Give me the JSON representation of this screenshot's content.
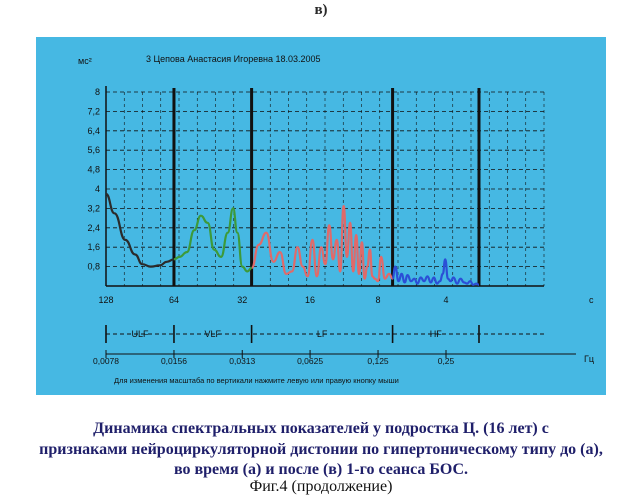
{
  "panel_label": "в)",
  "caption": {
    "line1": "Динамика спектральных показателей у подростка Ц. (16 лет) с",
    "line2": "признаками нейроциркуляторной дистонии по гипертоническому типу до (а),",
    "line3": "во время (а) и после (в) 1-го сеанса БОС."
  },
  "figure_label": "Фиг.4 (продолжение)",
  "colors": {
    "panel": "#46b8e3",
    "ulf": "#2b2b2b",
    "vlf": "#3d9a3a",
    "lf": "#e06a6a",
    "hf": "#2b4fd6"
  },
  "chart_data": {
    "type": "line",
    "title": "3 Цепова Анастасия Игоревна 18.03.2005",
    "ylabel": "мс²",
    "ylim": [
      0,
      8
    ],
    "yticks": [
      "0,8",
      "1,6",
      "2,4",
      "3,2",
      "4",
      "4,8",
      "5,6",
      "6,4",
      "7,2",
      "8"
    ],
    "period_ticks": [
      "128",
      "64",
      "32",
      "16",
      "8",
      "4"
    ],
    "period_unit": "с",
    "freq_ticks": [
      "0,0078",
      "0,0156",
      "0,0313",
      "0,0625",
      "0,125",
      "0,25"
    ],
    "freq_unit": "Гц",
    "bands": [
      "ULF",
      "VLF",
      "LF",
      "HF"
    ],
    "note": "Для изменения масштаба по вертикали нажмите левую или правую кнопку мыши",
    "grid": true,
    "series": [
      {
        "name": "ULF",
        "x": [
          0.0078,
          0.0085,
          0.0095,
          0.0105,
          0.0113,
          0.0123,
          0.0135,
          0.0145,
          0.0156
        ],
        "y": [
          3.8,
          3.0,
          1.9,
          1.3,
          0.9,
          0.8,
          0.85,
          1.0,
          1.1
        ]
      },
      {
        "name": "VLF",
        "x": [
          0.0156,
          0.0165,
          0.0178,
          0.0192,
          0.0205,
          0.022,
          0.0235,
          0.0252,
          0.027,
          0.0285,
          0.0298,
          0.0313,
          0.033,
          0.0345
        ],
        "y": [
          1.1,
          1.2,
          1.4,
          2.3,
          2.9,
          2.6,
          1.5,
          1.2,
          2.2,
          3.2,
          2.2,
          0.8,
          0.6,
          0.75
        ]
      },
      {
        "name": "LF",
        "x": [
          0.0345,
          0.037,
          0.04,
          0.043,
          0.046,
          0.049,
          0.052,
          0.055,
          0.058,
          0.061,
          0.064,
          0.067,
          0.07,
          0.073,
          0.076,
          0.079,
          0.082,
          0.085,
          0.088,
          0.091,
          0.094,
          0.097,
          0.1,
          0.103,
          0.106,
          0.109,
          0.112,
          0.115,
          0.118,
          0.121,
          0.125,
          0.129,
          0.134,
          0.14,
          0.145
        ],
        "y": [
          0.75,
          1.7,
          2.2,
          1.0,
          1.4,
          0.5,
          0.6,
          1.6,
          0.8,
          0.4,
          1.9,
          0.4,
          1.6,
          0.9,
          2.5,
          1.1,
          1.9,
          0.6,
          3.3,
          1.2,
          2.6,
          0.6,
          2.1,
          0.5,
          1.8,
          0.3,
          0.8,
          1.5,
          0.4,
          0.3,
          0.2,
          1.2,
          0.3,
          0.5,
          0.3
        ]
      },
      {
        "name": "HF",
        "x": [
          0.145,
          0.149,
          0.154,
          0.159,
          0.164,
          0.169,
          0.175,
          0.181,
          0.187,
          0.193,
          0.2,
          0.207,
          0.214,
          0.221,
          0.228,
          0.235,
          0.242,
          0.248,
          0.255,
          0.262,
          0.27,
          0.28,
          0.29,
          0.3,
          0.31,
          0.32,
          0.33,
          0.34,
          0.35
        ],
        "y": [
          0.3,
          0.8,
          0.2,
          0.5,
          0.15,
          0.45,
          0.2,
          0.3,
          0.1,
          0.35,
          0.2,
          0.4,
          0.15,
          0.35,
          0.1,
          0.2,
          0.5,
          1.1,
          0.3,
          0.2,
          0.35,
          0.1,
          0.3,
          0.15,
          0.1,
          0.2,
          0.05,
          0.1,
          0.05
        ]
      }
    ]
  }
}
